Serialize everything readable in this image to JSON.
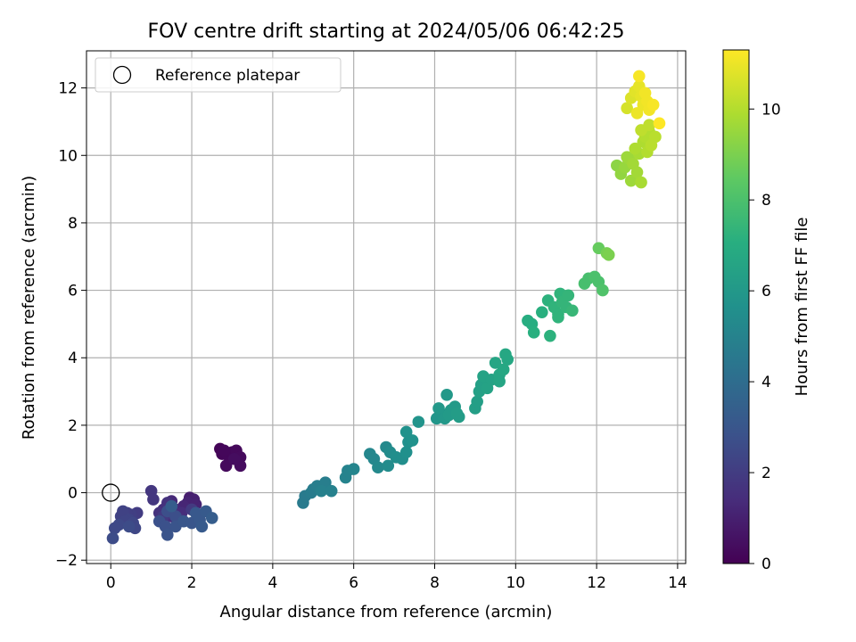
{
  "chart_data": {
    "type": "scatter",
    "title": "FOV centre drift starting at 2024/05/06 06:42:25",
    "xlabel": "Angular distance from reference (arcmin)",
    "ylabel": "Rotation from reference (arcmin)",
    "xlim": [
      -0.6,
      14.2
    ],
    "ylim": [
      -2.1,
      13.1
    ],
    "xticks": [
      0,
      2,
      4,
      6,
      8,
      10,
      12,
      14
    ],
    "yticks": [
      -2,
      0,
      2,
      4,
      6,
      8,
      10,
      12
    ],
    "grid": true,
    "legend": {
      "position": "top-left",
      "entries": [
        "Reference platepar"
      ]
    },
    "reference_point": {
      "x": 0,
      "y": 0
    },
    "colorbar": {
      "label": "Hours from first FF file",
      "colormap": "viridis",
      "range": [
        0,
        11.3
      ],
      "ticks": [
        0,
        2,
        4,
        6,
        8,
        10
      ]
    },
    "points": [
      [
        2.7,
        1.3,
        0.1
      ],
      [
        2.75,
        1.15,
        0.15
      ],
      [
        2.9,
        1.1,
        0.2
      ],
      [
        3.0,
        1.2,
        0.2
      ],
      [
        3.1,
        1.25,
        0.25
      ],
      [
        3.2,
        1.05,
        0.3
      ],
      [
        3.2,
        0.8,
        0.35
      ],
      [
        2.85,
        0.8,
        0.3
      ],
      [
        3.05,
        1.0,
        0.4
      ],
      [
        2.8,
        1.25,
        0.2
      ],
      [
        1.95,
        -0.15,
        0.9
      ],
      [
        2.05,
        -0.2,
        1.0
      ],
      [
        1.9,
        -0.3,
        1.1
      ],
      [
        2.1,
        -0.35,
        1.1
      ],
      [
        1.8,
        -0.4,
        1.2
      ],
      [
        1.6,
        -0.5,
        1.3
      ],
      [
        1.5,
        -0.25,
        1.3
      ],
      [
        1.75,
        -0.6,
        1.4
      ],
      [
        1.3,
        -0.5,
        1.5
      ],
      [
        1.5,
        -0.7,
        1.5
      ],
      [
        1.2,
        -0.6,
        1.6
      ],
      [
        1.4,
        -0.3,
        1.6
      ],
      [
        1.7,
        -0.8,
        1.7
      ],
      [
        1.0,
        0.05,
        1.8
      ],
      [
        1.05,
        -0.2,
        1.8
      ],
      [
        1.3,
        -0.7,
        1.9
      ],
      [
        2.0,
        -0.5,
        1.9
      ],
      [
        0.65,
        -0.6,
        2.0
      ],
      [
        0.5,
        -0.65,
        2.1
      ],
      [
        0.4,
        -0.6,
        2.1
      ],
      [
        0.3,
        -0.55,
        2.2
      ],
      [
        0.25,
        -0.7,
        2.2
      ],
      [
        0.45,
        -0.8,
        2.3
      ],
      [
        0.35,
        -0.85,
        2.3
      ],
      [
        0.55,
        -0.9,
        2.4
      ],
      [
        0.6,
        -1.05,
        2.4
      ],
      [
        0.2,
        -0.95,
        2.5
      ],
      [
        0.1,
        -1.05,
        2.5
      ],
      [
        0.05,
        -1.35,
        2.6
      ],
      [
        0.45,
        -1.0,
        2.6
      ],
      [
        1.4,
        -0.55,
        2.7
      ],
      [
        1.6,
        -0.7,
        2.7
      ],
      [
        1.2,
        -0.85,
        2.8
      ],
      [
        1.35,
        -1.0,
        2.8
      ],
      [
        1.4,
        -1.25,
        2.9
      ],
      [
        1.6,
        -1.0,
        2.9
      ],
      [
        1.8,
        -0.85,
        3.0
      ],
      [
        2.0,
        -0.9,
        3.0
      ],
      [
        2.1,
        -0.6,
        3.1
      ],
      [
        2.2,
        -0.8,
        3.1
      ],
      [
        2.35,
        -0.55,
        3.2
      ],
      [
        2.25,
        -1.0,
        3.2
      ],
      [
        2.5,
        -0.75,
        3.3
      ],
      [
        1.5,
        -0.4,
        3.3
      ],
      [
        4.75,
        -0.3,
        4.6
      ],
      [
        4.8,
        -0.1,
        4.6
      ],
      [
        4.95,
        0.0,
        4.7
      ],
      [
        5.0,
        0.1,
        4.7
      ],
      [
        5.1,
        0.2,
        4.8
      ],
      [
        5.3,
        0.3,
        4.8
      ],
      [
        5.2,
        0.05,
        4.9
      ],
      [
        5.45,
        0.05,
        4.9
      ],
      [
        5.8,
        0.45,
        5.0
      ],
      [
        5.85,
        0.65,
        5.0
      ],
      [
        6.0,
        0.7,
        5.1
      ],
      [
        6.4,
        1.15,
        5.2
      ],
      [
        6.5,
        1.0,
        5.2
      ],
      [
        6.6,
        0.75,
        5.3
      ],
      [
        6.8,
        1.35,
        5.3
      ],
      [
        6.9,
        1.2,
        5.4
      ],
      [
        6.85,
        0.8,
        5.4
      ],
      [
        7.05,
        1.05,
        5.5
      ],
      [
        7.2,
        1.0,
        5.5
      ],
      [
        7.3,
        1.2,
        5.6
      ],
      [
        7.35,
        1.5,
        5.6
      ],
      [
        7.3,
        1.8,
        5.7
      ],
      [
        7.45,
        1.55,
        5.7
      ],
      [
        7.6,
        2.1,
        5.8
      ],
      [
        8.05,
        2.2,
        5.9
      ],
      [
        8.15,
        2.35,
        5.9
      ],
      [
        8.1,
        2.5,
        6.0
      ],
      [
        8.25,
        2.2,
        6.0
      ],
      [
        8.3,
        2.9,
        6.0
      ],
      [
        8.4,
        2.45,
        6.1
      ],
      [
        8.5,
        2.55,
        6.1
      ],
      [
        8.6,
        2.25,
        6.2
      ],
      [
        8.55,
        2.35,
        6.2
      ],
      [
        8.35,
        2.3,
        6.1
      ],
      [
        9.0,
        2.5,
        6.3
      ],
      [
        9.05,
        2.7,
        6.3
      ],
      [
        9.1,
        3.0,
        6.4
      ],
      [
        9.15,
        3.2,
        6.4
      ],
      [
        9.2,
        3.45,
        6.5
      ],
      [
        9.3,
        3.1,
        6.5
      ],
      [
        9.4,
        3.35,
        6.5
      ],
      [
        9.5,
        3.85,
        6.6
      ],
      [
        9.6,
        3.5,
        6.6
      ],
      [
        9.7,
        3.65,
        6.7
      ],
      [
        9.8,
        3.95,
        6.7
      ],
      [
        9.75,
        4.1,
        6.7
      ],
      [
        9.6,
        3.3,
        6.6
      ],
      [
        10.3,
        5.1,
        7.0
      ],
      [
        10.4,
        5.0,
        7.0
      ],
      [
        10.45,
        4.75,
        7.1
      ],
      [
        10.65,
        5.35,
        7.1
      ],
      [
        10.8,
        5.7,
        7.2
      ],
      [
        10.85,
        4.65,
        7.2
      ],
      [
        10.95,
        5.5,
        7.3
      ],
      [
        11.05,
        5.3,
        7.3
      ],
      [
        11.1,
        5.9,
        7.3
      ],
      [
        11.15,
        5.65,
        7.4
      ],
      [
        11.25,
        5.5,
        7.4
      ],
      [
        11.3,
        5.85,
        7.4
      ],
      [
        11.4,
        5.4,
        7.5
      ],
      [
        11.05,
        5.2,
        7.3
      ],
      [
        11.7,
        6.2,
        7.9
      ],
      [
        11.8,
        6.35,
        7.9
      ],
      [
        11.95,
        6.4,
        8.0
      ],
      [
        12.05,
        6.25,
        8.0
      ],
      [
        12.15,
        6.0,
        8.1
      ],
      [
        12.05,
        7.25,
        8.6
      ],
      [
        12.25,
        7.1,
        8.9
      ],
      [
        12.3,
        7.05,
        9.0
      ],
      [
        12.5,
        9.7,
        9.3
      ],
      [
        12.6,
        9.45,
        9.4
      ],
      [
        12.7,
        9.65,
        9.5
      ],
      [
        12.8,
        9.9,
        9.6
      ],
      [
        12.85,
        9.25,
        9.6
      ],
      [
        12.9,
        9.75,
        9.7
      ],
      [
        13.0,
        9.5,
        9.7
      ],
      [
        13.05,
        10.05,
        9.8
      ],
      [
        13.1,
        9.2,
        9.8
      ],
      [
        12.95,
        10.2,
        9.9
      ],
      [
        13.15,
        10.4,
        9.9
      ],
      [
        13.2,
        10.55,
        10.0
      ],
      [
        13.3,
        10.7,
        10.0
      ],
      [
        13.35,
        10.3,
        10.1
      ],
      [
        13.45,
        10.55,
        10.1
      ],
      [
        13.3,
        10.9,
        10.2
      ],
      [
        13.1,
        10.75,
        10.2
      ],
      [
        12.75,
        9.95,
        9.6
      ],
      [
        13.25,
        10.1,
        10.0
      ],
      [
        12.75,
        11.4,
        10.6
      ],
      [
        12.85,
        11.7,
        10.7
      ],
      [
        12.95,
        11.9,
        10.8
      ],
      [
        13.05,
        12.05,
        10.9
      ],
      [
        13.1,
        11.75,
        10.9
      ],
      [
        13.15,
        11.5,
        11.0
      ],
      [
        13.0,
        11.25,
        11.0
      ],
      [
        13.2,
        11.85,
        11.1
      ],
      [
        13.25,
        11.6,
        11.1
      ],
      [
        13.3,
        11.35,
        11.1
      ],
      [
        13.4,
        11.5,
        11.2
      ],
      [
        13.05,
        12.35,
        11.2
      ],
      [
        13.55,
        10.95,
        11.3
      ]
    ]
  }
}
